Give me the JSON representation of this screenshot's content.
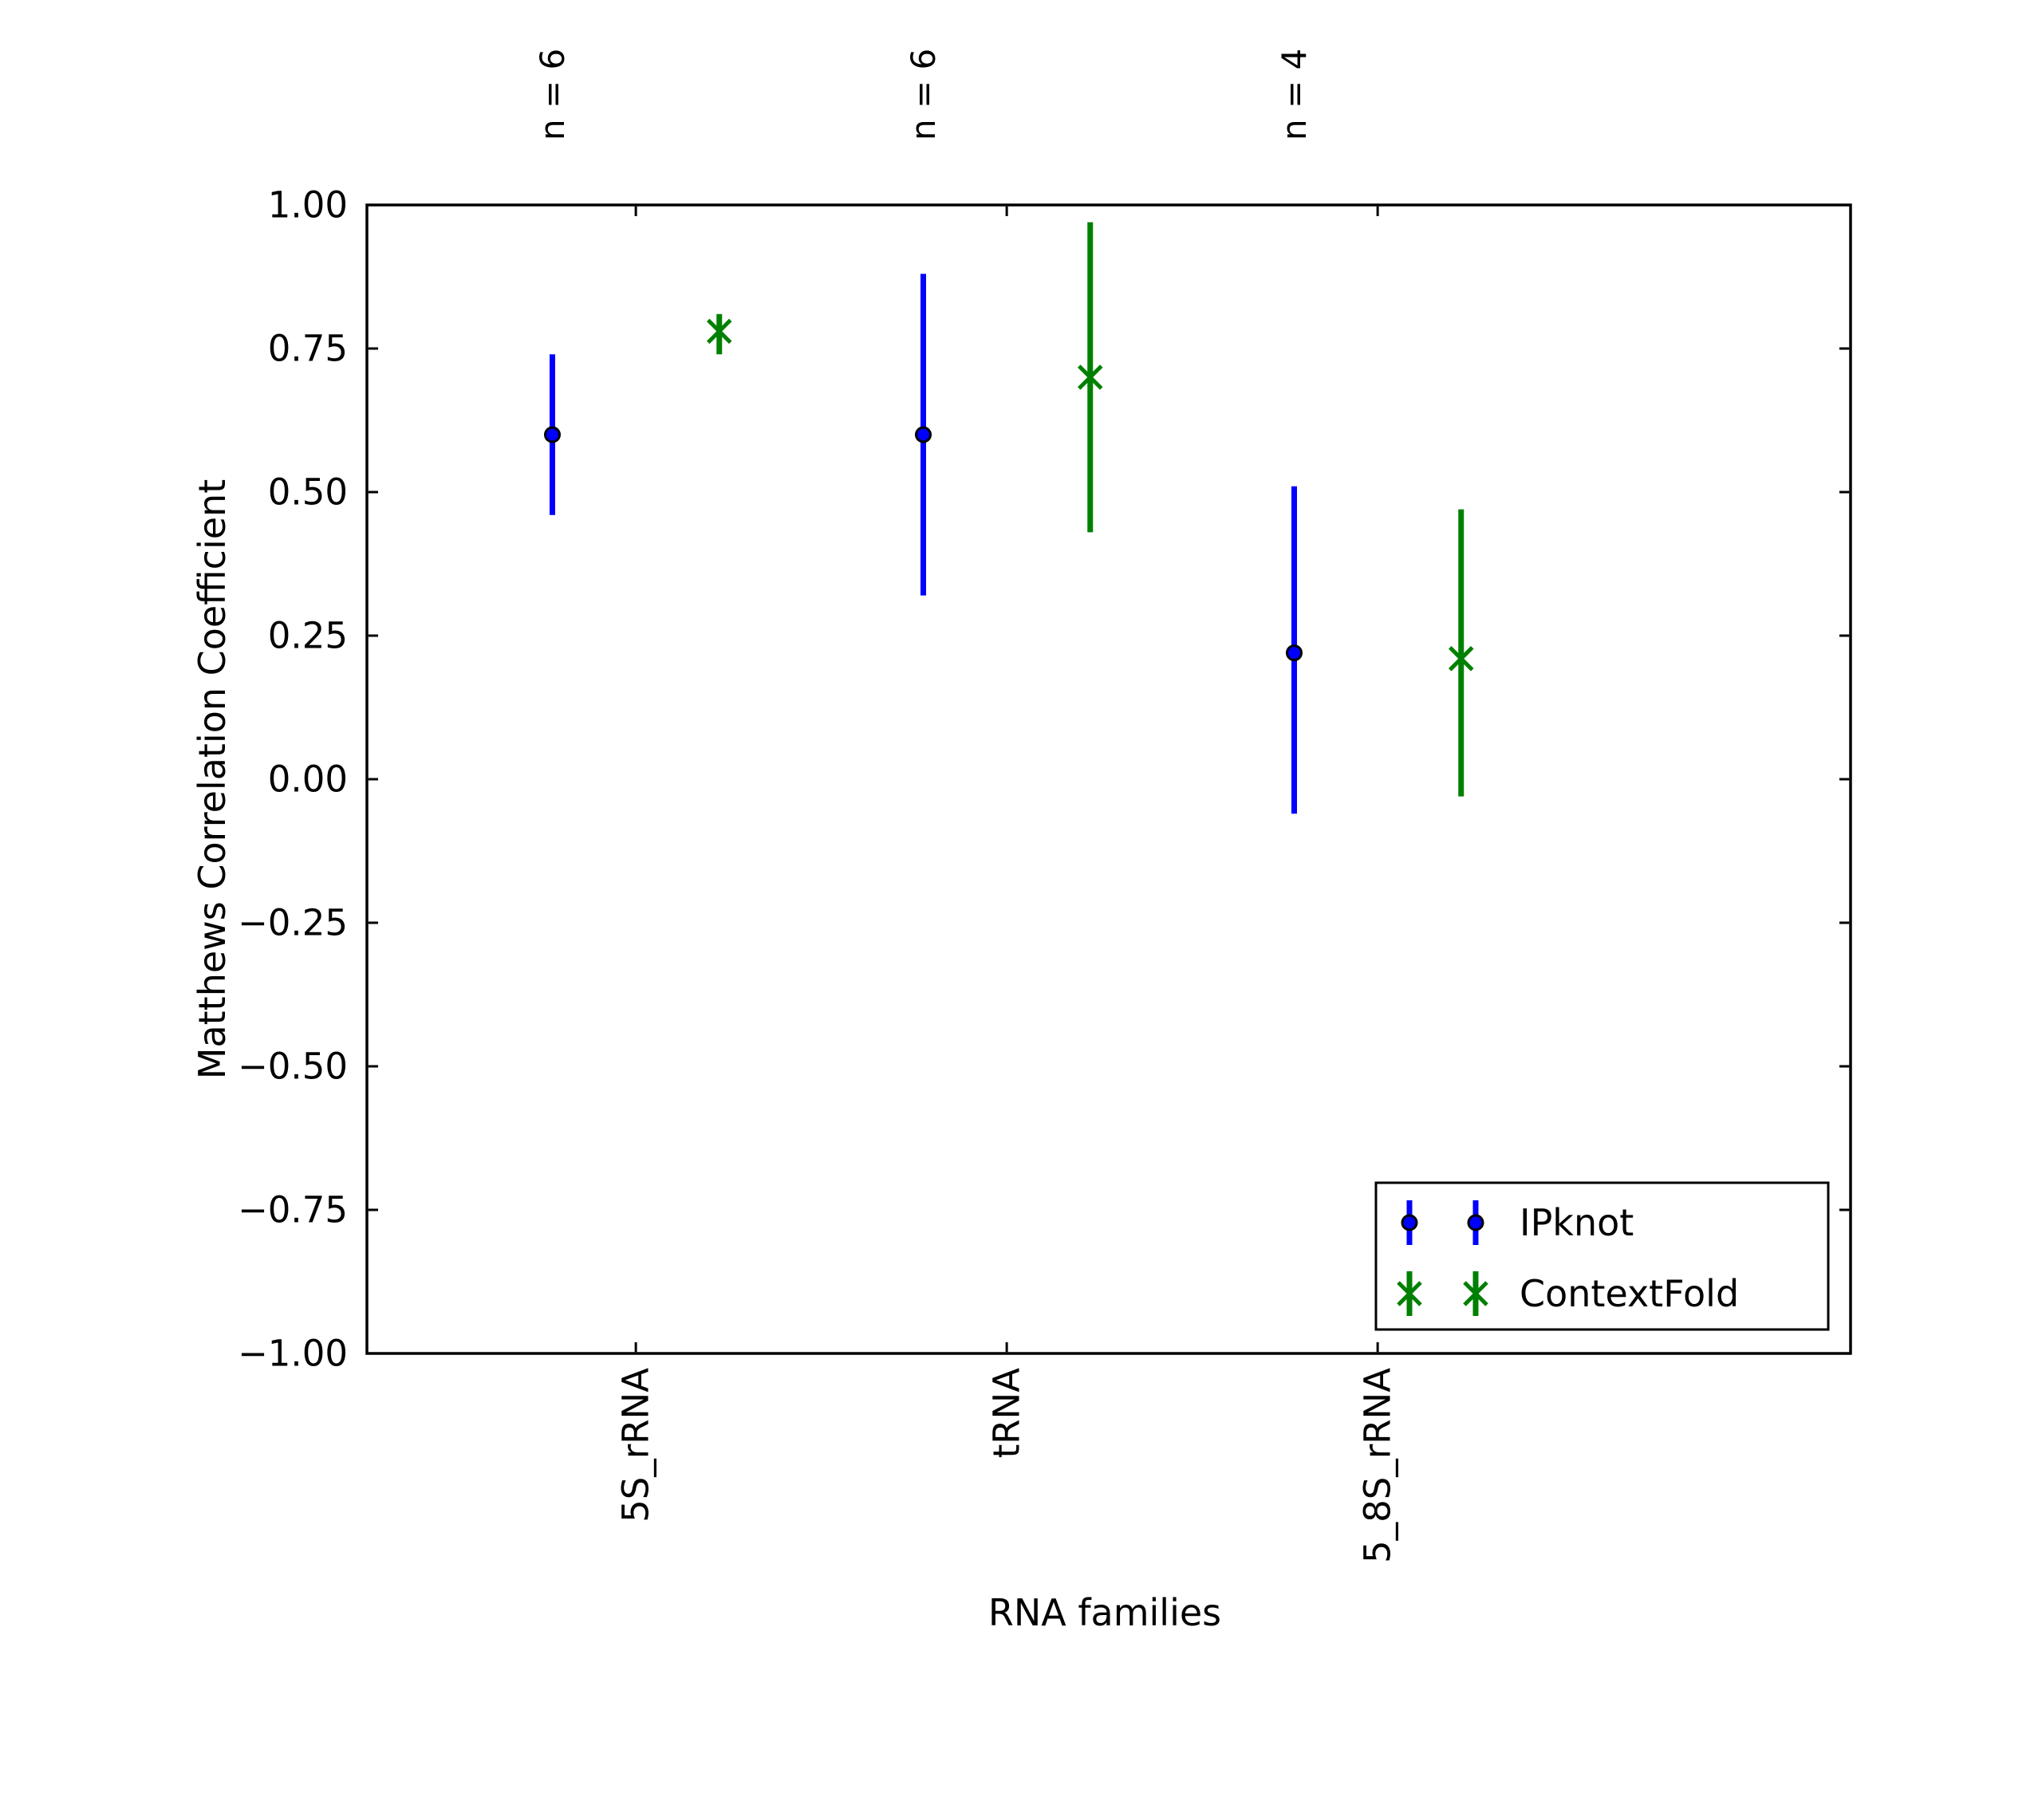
{
  "figure": {
    "background": "#ffffff",
    "axes_color": "#000000",
    "text_color": "#000000"
  },
  "chart_data": {
    "type": "errorbar",
    "title": "",
    "xlabel": "RNA families",
    "ylabel": "Matthews Correlation Coefficient",
    "grid": false,
    "legend_position": "lower right",
    "ylim": [
      -1.0,
      1.0
    ],
    "ytick_labels": [
      "1.00",
      "0.75",
      "0.50",
      "0.25",
      "0.00",
      "−0.25",
      "−0.50",
      "−0.75",
      "−1.00"
    ],
    "ytick_values": [
      1.0,
      0.75,
      0.5,
      0.25,
      0.0,
      -0.25,
      -0.5,
      -0.75,
      -1.0
    ],
    "xlim": [
      -0.5,
      3.5
    ],
    "categories": [
      "5S_rRNA",
      "tRNA",
      "5_8S_rRNA"
    ],
    "category_tick_x": [
      0.225,
      1.225,
      2.225
    ],
    "n_annotations": [
      {
        "label": "n = 6",
        "x": 0
      },
      {
        "label": "n = 6",
        "x": 1
      },
      {
        "label": "n = 4",
        "x": 2
      }
    ],
    "series": [
      {
        "name": "IPknot",
        "color": "#0000ff",
        "marker": "circle",
        "x": [
          0,
          1,
          2
        ],
        "y": [
          0.6,
          0.6,
          0.22
        ],
        "y_lo": [
          0.46,
          0.32,
          -0.06
        ],
        "y_hi": [
          0.74,
          0.88,
          0.51
        ]
      },
      {
        "name": "ContextFold",
        "color": "#008000",
        "marker": "x",
        "x": [
          0.45,
          1.45,
          2.45
        ],
        "y": [
          0.78,
          0.7,
          0.21
        ],
        "y_lo": [
          0.74,
          0.43,
          -0.03
        ],
        "y_hi": [
          0.81,
          0.97,
          0.47
        ]
      }
    ]
  }
}
